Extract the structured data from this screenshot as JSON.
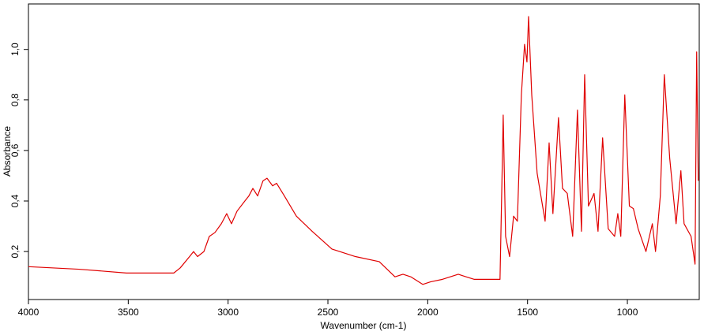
{
  "chart_data": {
    "type": "line",
    "x_label": "Wavenumber (cm-1)",
    "y_label": "Absorbance",
    "xlim": [
      4000,
      640
    ],
    "ylim": [
      0.01,
      1.18
    ],
    "xticks": [
      4000,
      3500,
      3000,
      2500,
      2000,
      1500,
      1000
    ],
    "yticks": [
      {
        "value": 0.2,
        "label": "0,2"
      },
      {
        "value": 0.4,
        "label": "0,4"
      },
      {
        "value": 0.6,
        "label": "0,6"
      },
      {
        "value": 0.8,
        "label": "0,8"
      },
      {
        "value": 1.0,
        "label": "1,0"
      }
    ],
    "x": [
      4000,
      3747,
      3509,
      3272,
      3240,
      3193,
      3173,
      3153,
      3121,
      3094,
      3066,
      3034,
      3007,
      2983,
      2955,
      2916,
      2896,
      2876,
      2852,
      2825,
      2805,
      2777,
      2757,
      2718,
      2658,
      2579,
      2480,
      2362,
      2243,
      2164,
      2124,
      2085,
      2025,
      1986,
      1926,
      1847,
      1808,
      1768,
      1669,
      1638,
      1626,
      1622,
      1610,
      1590,
      1570,
      1551,
      1531,
      1515,
      1503,
      1495,
      1479,
      1452,
      1412,
      1392,
      1373,
      1345,
      1325,
      1301,
      1274,
      1250,
      1230,
      1214,
      1195,
      1167,
      1147,
      1124,
      1096,
      1064,
      1048,
      1033,
      1013,
      990,
      970,
      946,
      907,
      875,
      859,
      835,
      815,
      788,
      756,
      732,
      716,
      681,
      661,
      653,
      645
    ],
    "series": [
      {
        "name": "Absorbance",
        "color": "#e00000",
        "values": [
          0.14,
          0.13,
          0.115,
          0.115,
          0.135,
          0.18,
          0.2,
          0.18,
          0.2,
          0.26,
          0.275,
          0.31,
          0.35,
          0.31,
          0.36,
          0.4,
          0.42,
          0.45,
          0.42,
          0.48,
          0.49,
          0.46,
          0.47,
          0.42,
          0.34,
          0.28,
          0.21,
          0.18,
          0.16,
          0.1,
          0.11,
          0.1,
          0.07,
          0.08,
          0.09,
          0.11,
          0.1,
          0.09,
          0.09,
          0.09,
          0.57,
          0.74,
          0.26,
          0.18,
          0.34,
          0.32,
          0.82,
          1.02,
          0.95,
          1.13,
          0.82,
          0.51,
          0.32,
          0.63,
          0.35,
          0.73,
          0.45,
          0.43,
          0.26,
          0.76,
          0.28,
          0.9,
          0.38,
          0.43,
          0.28,
          0.65,
          0.29,
          0.26,
          0.35,
          0.26,
          0.82,
          0.38,
          0.37,
          0.29,
          0.2,
          0.31,
          0.2,
          0.42,
          0.9,
          0.57,
          0.31,
          0.52,
          0.31,
          0.26,
          0.15,
          0.99,
          0.48
        ]
      }
    ]
  }
}
